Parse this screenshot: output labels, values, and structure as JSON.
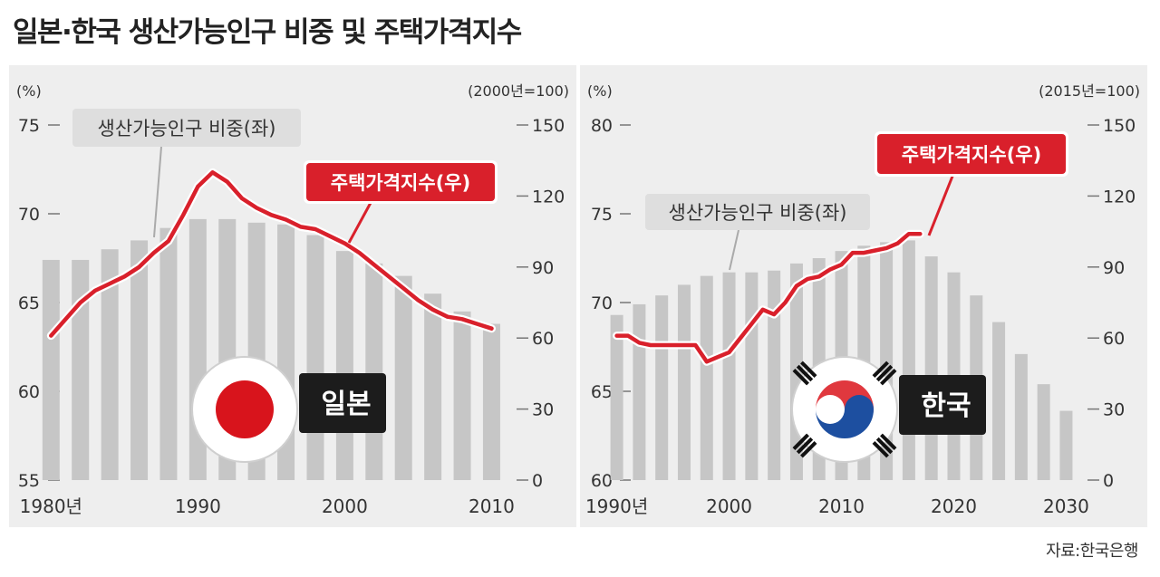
{
  "title": "일본·한국 생산가능인구 비중 및 주택가격지수",
  "source": "자료:한국은행",
  "colors": {
    "panel_bg": "#eeeeee",
    "bar": "#c6c6c6",
    "line": "#d9202b",
    "label_gray_bg": "#dedede",
    "label_red_bg": "#d9202b",
    "country_tag_bg": "#1c1c1c"
  },
  "chart_data": [
    {
      "type": "bar",
      "country": "일본",
      "flag_icon": "japan-flag-icon",
      "left_unit": "(%)",
      "right_unit": "(2000년=100)",
      "ylim_left": [
        55,
        75
      ],
      "ylim_right": [
        0,
        150
      ],
      "left_ticks": [
        "75",
        "70",
        "65",
        "60",
        "55"
      ],
      "right_ticks": [
        "150",
        "120",
        "90",
        "60",
        "30",
        "0"
      ],
      "x_ticks": [
        "1980년",
        "1990",
        "2000",
        "2010"
      ],
      "xlim": [
        1978.5,
        2011.7
      ],
      "series": [
        {
          "name": "생산가능인구 비중(좌)",
          "type": "bar",
          "axis": "left",
          "x": [
            1980,
            1982,
            1984,
            1986,
            1988,
            1990,
            1992,
            1994,
            1996,
            1998,
            2000,
            2002,
            2004,
            2006,
            2008,
            2010
          ],
          "values": [
            67.4,
            67.4,
            68.0,
            68.5,
            69.2,
            69.7,
            69.7,
            69.5,
            69.4,
            68.8,
            67.9,
            67.2,
            66.5,
            65.5,
            64.5,
            63.8
          ]
        },
        {
          "name": "주택가격지수(우)",
          "type": "line",
          "axis": "right",
          "x": [
            1980,
            1981,
            1982,
            1983,
            1984,
            1985,
            1986,
            1987,
            1988,
            1989,
            1990,
            1991,
            1992,
            1993,
            1994,
            1995,
            1996,
            1997,
            1998,
            1999,
            2000,
            2001,
            2002,
            2003,
            2004,
            2005,
            2006,
            2007,
            2008,
            2009,
            2010
          ],
          "values": [
            61,
            68,
            75,
            80,
            83,
            86,
            90,
            96,
            101,
            112,
            124,
            130,
            126,
            119,
            115,
            112,
            110,
            107,
            106,
            103,
            100,
            96,
            91,
            86,
            81,
            76,
            72,
            69,
            68,
            66,
            64
          ]
        }
      ]
    },
    {
      "type": "bar",
      "country": "한국",
      "flag_icon": "korea-flag-icon",
      "left_unit": "(%)",
      "right_unit": "(2015년=100)",
      "ylim_left": [
        60,
        80
      ],
      "ylim_right": [
        0,
        150
      ],
      "left_ticks": [
        "80",
        "75",
        "70",
        "65",
        "60"
      ],
      "right_ticks": [
        "150",
        "120",
        "90",
        "60",
        "30",
        "0"
      ],
      "x_ticks": [
        "1990년",
        "2000",
        "2010",
        "2020",
        "2030"
      ],
      "xlim": [
        1988.5,
        2031.9
      ],
      "series": [
        {
          "name": "생산가능인구 비중(좌)",
          "type": "bar",
          "axis": "left",
          "x": [
            1990,
            1992,
            1994,
            1996,
            1998,
            2000,
            2002,
            2004,
            2006,
            2008,
            2010,
            2012,
            2014,
            2016,
            2018,
            2020,
            2022,
            2024,
            2026,
            2028,
            2030
          ],
          "values": [
            69.3,
            69.9,
            70.4,
            71.0,
            71.5,
            71.7,
            71.7,
            71.8,
            72.2,
            72.5,
            72.9,
            73.2,
            73.4,
            73.5,
            72.6,
            71.7,
            70.4,
            68.9,
            67.1,
            65.4,
            63.9
          ]
        },
        {
          "name": "주택가격지수(우)",
          "type": "line",
          "axis": "right",
          "x": [
            1990,
            1991,
            1992,
            1993,
            1994,
            1995,
            1996,
            1997,
            1998,
            1999,
            2000,
            2001,
            2002,
            2003,
            2004,
            2005,
            2006,
            2007,
            2008,
            2009,
            2010,
            2011,
            2012,
            2013,
            2014,
            2015,
            2016,
            2017
          ],
          "values": [
            61,
            61,
            58,
            57,
            57,
            57,
            57,
            57,
            50,
            52,
            54,
            60,
            66,
            72,
            70,
            75,
            82,
            85,
            86,
            89,
            91,
            96,
            96,
            97,
            98,
            100,
            104,
            104
          ]
        }
      ]
    }
  ]
}
